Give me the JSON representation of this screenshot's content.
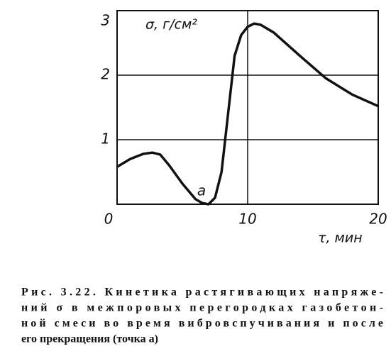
{
  "chart_data": {
    "type": "line",
    "y_label": "σ, г/см²",
    "x_label": "τ, мин",
    "annotation": "a",
    "x": [
      0,
      1,
      2,
      2.7,
      3.3,
      4,
      5,
      6,
      6.5,
      7,
      7.5,
      8,
      8.5,
      9,
      9.5,
      10,
      10.5,
      11,
      12,
      14,
      16,
      18,
      20
    ],
    "values": [
      0.58,
      0.7,
      0.78,
      0.8,
      0.77,
      0.6,
      0.32,
      0.08,
      0.02,
      0.0,
      0.1,
      0.5,
      1.4,
      2.3,
      2.62,
      2.75,
      2.8,
      2.78,
      2.66,
      2.3,
      1.95,
      1.7,
      1.52
    ],
    "color": "#111111",
    "xlim": [
      0,
      20
    ],
    "xticks": [
      0,
      10,
      20
    ],
    "ylim": [
      0,
      3
    ],
    "yticks": [
      1,
      2,
      3
    ],
    "grid": true
  },
  "caption": [
    "Рис. 3.22. Кинетика растягивающих напряже-",
    "ний σ в межпоровых перегородках газобетон-",
    "ной смеси во время вибровспучивания и после",
    "его прекращения (точка a)"
  ]
}
